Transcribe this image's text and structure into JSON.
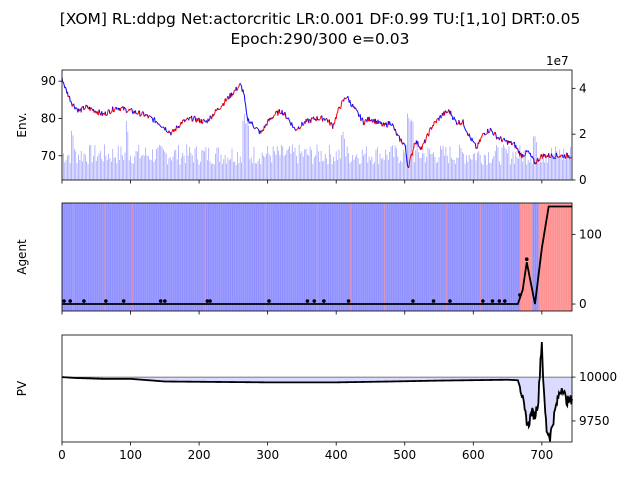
{
  "chart_data": {
    "type": "line",
    "title": "[XOM] RL:ddpg Net:actorcritic LR:0.001 DF:0.99 TU:[1,10] DRT:0.05",
    "subtitle": "Epoch:290/300 e=0.03",
    "colors": {
      "price_up": "#ff0000",
      "price_down": "#0000ff",
      "volume": "#0000ff",
      "hold": "#0000ff",
      "sell": "#ff0000",
      "line": "#000000",
      "pv_fill": "#ccccff"
    },
    "x_shared": {
      "range": [
        0,
        744
      ],
      "ticks": [
        0,
        100,
        200,
        300,
        400,
        500,
        600,
        700
      ]
    },
    "panels": [
      {
        "name": "env",
        "ylabel": "Env.",
        "ylim": [
          63.5,
          93
        ],
        "yticks": [
          70,
          80,
          90
        ],
        "y2lim": [
          0,
          4.8
        ],
        "y2ticks": [
          0,
          2,
          4
        ],
        "y2_multiplier": "1e7",
        "price_keypoints": [
          [
            0,
            91
          ],
          [
            5,
            88
          ],
          [
            15,
            84
          ],
          [
            25,
            82
          ],
          [
            35,
            83
          ],
          [
            50,
            82
          ],
          [
            60,
            81
          ],
          [
            80,
            83
          ],
          [
            100,
            82
          ],
          [
            120,
            81
          ],
          [
            140,
            79
          ],
          [
            160,
            76
          ],
          [
            175,
            79
          ],
          [
            190,
            80
          ],
          [
            210,
            79
          ],
          [
            230,
            83
          ],
          [
            250,
            87
          ],
          [
            260,
            89
          ],
          [
            265,
            87
          ],
          [
            270,
            80
          ],
          [
            280,
            78
          ],
          [
            290,
            76
          ],
          [
            300,
            79
          ],
          [
            310,
            81
          ],
          [
            320,
            82
          ],
          [
            330,
            80
          ],
          [
            340,
            77
          ],
          [
            355,
            79
          ],
          [
            370,
            80
          ],
          [
            385,
            80
          ],
          [
            395,
            78
          ],
          [
            405,
            83
          ],
          [
            415,
            86
          ],
          [
            425,
            83
          ],
          [
            440,
            79
          ],
          [
            450,
            80
          ],
          [
            460,
            79
          ],
          [
            470,
            78
          ],
          [
            480,
            79
          ],
          [
            490,
            75
          ],
          [
            500,
            73
          ],
          [
            505,
            67
          ],
          [
            510,
            70
          ],
          [
            515,
            74
          ],
          [
            525,
            72
          ],
          [
            540,
            78
          ],
          [
            555,
            81
          ],
          [
            565,
            82
          ],
          [
            575,
            79
          ],
          [
            585,
            79
          ],
          [
            595,
            75
          ],
          [
            605,
            72
          ],
          [
            615,
            76
          ],
          [
            625,
            77
          ],
          [
            635,
            75
          ],
          [
            645,
            74
          ],
          [
            660,
            73
          ],
          [
            670,
            70
          ],
          [
            680,
            71
          ],
          [
            690,
            68
          ],
          [
            700,
            70
          ],
          [
            720,
            70
          ],
          [
            740,
            70
          ]
        ],
        "volume_base": 1.2,
        "volume_spikes": [
          [
            15,
            2.2
          ],
          [
            95,
            2.5
          ],
          [
            265,
            2.8
          ],
          [
            270,
            2.4
          ],
          [
            410,
            2.0
          ],
          [
            505,
            3.2
          ],
          [
            510,
            2.6
          ],
          [
            690,
            2.0
          ]
        ]
      },
      {
        "name": "agent",
        "ylabel": "Agent",
        "ylim": [
          -10,
          145
        ],
        "yticks": [
          0,
          100
        ],
        "position_keypoints": [
          [
            0,
            0
          ],
          [
            665,
            0
          ],
          [
            672,
            20
          ],
          [
            678,
            60
          ],
          [
            683,
            35
          ],
          [
            690,
            0
          ],
          [
            700,
            80
          ],
          [
            710,
            140
          ],
          [
            744,
            140
          ]
        ],
        "sell_bands": [
          [
            16,
            17
          ],
          [
            62,
            63
          ],
          [
            102,
            103
          ],
          [
            208,
            209
          ],
          [
            296,
            297
          ],
          [
            372,
            373
          ],
          [
            420,
            421
          ],
          [
            470,
            471
          ],
          [
            560,
            561
          ],
          [
            610,
            611
          ],
          [
            640,
            641
          ],
          [
            668,
            686
          ],
          [
            695,
            744
          ]
        ],
        "markers_x": [
          3,
          12,
          32,
          64,
          90,
          144,
          150,
          212,
          216,
          302,
          358,
          368,
          382,
          418,
          512,
          542,
          566,
          614,
          628,
          638,
          646,
          668,
          678
        ]
      },
      {
        "name": "pv",
        "ylabel": "PV",
        "ylim": [
          9630,
          10240
        ],
        "yticks": [
          9750,
          10000
        ],
        "baseline": 10000,
        "pv_keypoints": [
          [
            0,
            10000
          ],
          [
            20,
            9995
          ],
          [
            60,
            9990
          ],
          [
            100,
            9990
          ],
          [
            150,
            9975
          ],
          [
            300,
            9970
          ],
          [
            400,
            9970
          ],
          [
            480,
            9975
          ],
          [
            550,
            9980
          ],
          [
            650,
            9985
          ],
          [
            665,
            9982
          ],
          [
            670,
            9920
          ],
          [
            675,
            9800
          ],
          [
            680,
            9720
          ],
          [
            685,
            9800
          ],
          [
            690,
            9780
          ],
          [
            695,
            9870
          ],
          [
            698,
            10100
          ],
          [
            700,
            10200
          ],
          [
            703,
            9900
          ],
          [
            707,
            9700
          ],
          [
            712,
            9660
          ],
          [
            716,
            9740
          ],
          [
            720,
            9820
          ],
          [
            725,
            9900
          ],
          [
            730,
            9950
          ],
          [
            735,
            9870
          ],
          [
            740,
            9860
          ],
          [
            744,
            9880
          ]
        ]
      }
    ]
  }
}
